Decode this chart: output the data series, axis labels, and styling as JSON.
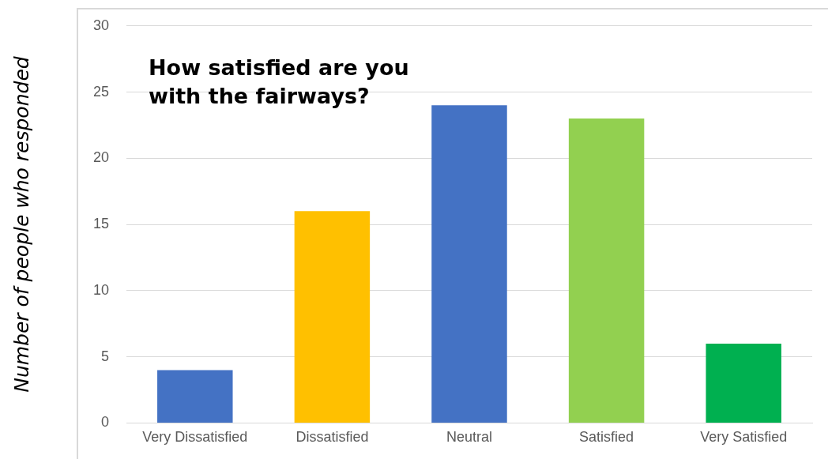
{
  "chart_data": {
    "type": "bar",
    "title": "How satisfied are you with the fairways?",
    "ylabel": "Number of people who responded",
    "categories": [
      "Very Dissatisfied",
      "Dissatisfied",
      "Neutral",
      "Satisfied",
      "Very Satisfied"
    ],
    "values": [
      4,
      16,
      24,
      23,
      6
    ],
    "colors": [
      "#4472c4",
      "#ffc000",
      "#4472c4",
      "#92d050",
      "#00b050"
    ],
    "ylim": [
      0,
      30
    ],
    "yticks": [
      0,
      5,
      10,
      15,
      20,
      25,
      30
    ],
    "grid": "y",
    "legend": false
  }
}
